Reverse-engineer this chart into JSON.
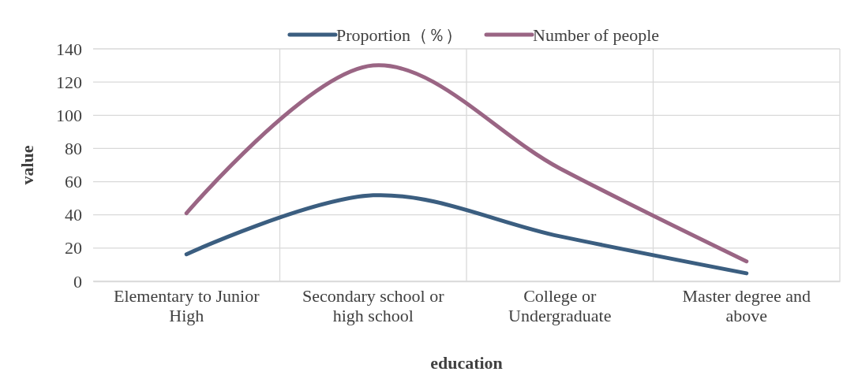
{
  "chart_data": {
    "type": "line",
    "xlabel": "education",
    "ylabel": "value",
    "categories": [
      "Elementary to Junior High",
      "Secondary school or high school",
      "College or Undergraduate",
      "Master degree and above"
    ],
    "series": [
      {
        "name": "Proportion（％）",
        "color": "#3b5e80",
        "values": [
          16.3,
          51.8,
          27.1,
          4.8
        ]
      },
      {
        "name": "Number of people",
        "color": "#9a6584",
        "values": [
          41,
          130,
          68,
          12
        ]
      }
    ],
    "ylim": [
      0,
      140
    ],
    "yticks": [
      0,
      20,
      40,
      60,
      80,
      100,
      120,
      140
    ],
    "grid": true,
    "legend": "top",
    "line_style": "solid",
    "marker": "none"
  }
}
